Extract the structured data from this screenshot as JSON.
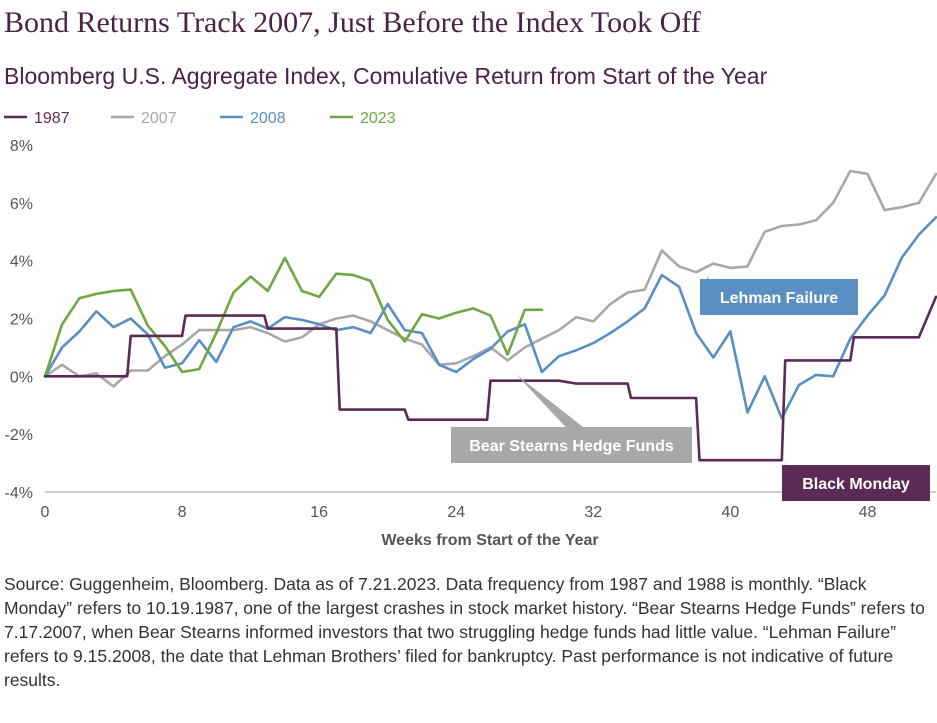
{
  "chart_data": {
    "type": "line",
    "title": "Bond Returns Track 2007, Just Before the Index Took Off",
    "subtitle": "Bloomberg U.S. Aggregate Index, Comulative Return from Start of the Year",
    "xlabel": "Weeks from Start of the Year",
    "ylabel": "",
    "xlim": [
      0,
      52
    ],
    "ylim": [
      -4,
      8
    ],
    "x_ticks": [
      "0",
      "8",
      "16",
      "24",
      "32",
      "40",
      "48"
    ],
    "y_ticks": [
      "8%",
      "6%",
      "4%",
      "2%",
      "0%",
      "-2%",
      "-4%"
    ],
    "grid": false,
    "legend_position": "top-left",
    "series": [
      {
        "name": "1987",
        "color": "#5b2b56",
        "x": [
          0,
          1,
          2,
          3,
          4,
          4.8,
          5,
          6,
          7,
          8,
          8.2,
          9,
          10,
          11,
          12,
          12.8,
          13,
          14,
          15,
          16,
          16.2,
          17,
          17.2,
          18,
          19,
          20,
          21,
          21.2,
          22,
          23,
          24,
          25,
          25.8,
          26,
          27,
          28,
          29,
          30,
          31,
          32,
          33,
          34,
          34.2,
          35,
          36,
          37,
          38,
          38.2,
          39,
          40,
          41,
          42,
          43,
          43.2,
          44,
          45,
          46,
          47,
          47.2,
          48,
          49,
          50,
          51,
          52
        ],
        "y": [
          0,
          0,
          0,
          0,
          0,
          0,
          1.4,
          1.4,
          1.4,
          1.4,
          2.1,
          2.1,
          2.1,
          2.1,
          2.1,
          2.1,
          1.65,
          1.65,
          1.65,
          1.65,
          1.65,
          1.65,
          -1.15,
          -1.15,
          -1.15,
          -1.15,
          -1.15,
          -1.5,
          -1.5,
          -1.5,
          -1.5,
          -1.5,
          -1.5,
          -0.15,
          -0.15,
          -0.15,
          -0.15,
          -0.15,
          -0.25,
          -0.25,
          -0.25,
          -0.25,
          -0.75,
          -0.75,
          -0.75,
          -0.75,
          -0.75,
          -2.9,
          -2.9,
          -2.9,
          -2.9,
          -2.9,
          -2.9,
          0.55,
          0.55,
          0.55,
          0.55,
          0.55,
          1.35,
          1.35,
          1.35,
          1.35,
          1.35,
          2.75
        ]
      },
      {
        "name": "2007",
        "color": "#a8a8a8",
        "x": [
          0,
          1,
          2,
          3,
          4,
          5,
          6,
          7,
          8,
          9,
          10,
          11,
          12,
          13,
          14,
          15,
          16,
          17,
          18,
          19,
          20,
          21,
          22,
          23,
          24,
          25,
          26,
          27,
          28,
          29,
          30,
          31,
          32,
          33,
          34,
          35,
          36,
          37,
          38,
          39,
          40,
          41,
          42,
          43,
          44,
          45,
          46,
          47,
          48,
          49,
          50,
          51,
          52
        ],
        "y": [
          0,
          0.4,
          0,
          0.1,
          -0.35,
          0.2,
          0.2,
          0.7,
          1.1,
          1.6,
          1.6,
          1.6,
          1.7,
          1.5,
          1.2,
          1.35,
          1.8,
          2.0,
          2.1,
          1.9,
          1.6,
          1.3,
          1.1,
          0.4,
          0.45,
          0.7,
          1.0,
          0.55,
          1.0,
          1.3,
          1.6,
          2.05,
          1.9,
          2.5,
          2.9,
          3.0,
          4.35,
          3.8,
          3.6,
          3.9,
          3.75,
          3.8,
          5.0,
          5.2,
          5.25,
          5.4,
          6.0,
          7.1,
          7.0,
          5.75,
          5.85,
          6.0,
          7.0
        ]
      },
      {
        "name": "2008",
        "color": "#5a8fc3",
        "x": [
          0,
          1,
          2,
          3,
          4,
          5,
          6,
          7,
          8,
          9,
          10,
          11,
          12,
          13,
          14,
          15,
          16,
          17,
          18,
          19,
          20,
          21,
          22,
          23,
          24,
          25,
          26,
          27,
          28,
          29,
          30,
          31,
          32,
          33,
          34,
          35,
          36,
          37,
          38,
          39,
          40,
          41,
          42,
          43,
          44,
          45,
          46,
          47,
          48,
          49,
          50,
          51,
          52
        ],
        "y": [
          0,
          1.0,
          1.55,
          2.25,
          1.7,
          2.0,
          1.45,
          0.3,
          0.45,
          1.25,
          0.5,
          1.7,
          1.9,
          1.65,
          2.05,
          1.95,
          1.8,
          1.6,
          1.7,
          1.5,
          2.5,
          1.6,
          1.5,
          0.4,
          0.15,
          0.6,
          0.95,
          1.55,
          1.8,
          0.15,
          0.7,
          0.9,
          1.15,
          1.5,
          1.9,
          2.35,
          3.5,
          3.1,
          1.5,
          0.65,
          1.55,
          -1.25,
          0,
          -1.45,
          -0.3,
          0.05,
          0,
          1.3,
          2.1,
          2.8,
          4.1,
          4.9,
          5.5
        ]
      },
      {
        "name": "2023",
        "color": "#6ea744",
        "x": [
          0,
          1,
          2,
          3,
          4,
          5,
          6,
          7,
          8,
          9,
          10,
          11,
          12,
          13,
          14,
          15,
          16,
          17,
          18,
          19,
          20,
          21,
          22,
          23,
          24,
          25,
          26,
          27,
          28,
          29
        ],
        "y": [
          0,
          1.8,
          2.7,
          2.85,
          2.95,
          3.0,
          1.75,
          1.05,
          0.15,
          0.25,
          1.5,
          2.9,
          3.45,
          2.95,
          4.1,
          2.95,
          2.75,
          3.55,
          3.5,
          3.3,
          1.95,
          1.2,
          2.15,
          2.0,
          2.2,
          2.35,
          2.1,
          0.75,
          2.3,
          2.3
        ]
      }
    ],
    "annotations": [
      {
        "id": "lehman",
        "text": "Lehman Failure",
        "x": 38.5,
        "y": 3.5,
        "color": "#5a8fc3"
      },
      {
        "id": "bear",
        "text": "Bear Stearns Hedge Funds",
        "x": 27.5,
        "y": 0.2,
        "color": "#a8a8a8"
      },
      {
        "id": "black",
        "text": "Black Monday",
        "x": 43,
        "y": -2.9,
        "color": "#5b2b56"
      }
    ]
  },
  "source_text": "Source: Guggenheim, Bloomberg. Data as of 7.21.2023. Data frequency from 1987 and 1988 is monthly. “Black Monday” refers to 10.19.1987, one of the largest crashes in stock market history. “Bear Stearns Hedge Funds” refers to 7.17.2007, when Bear Stearns informed investors that two struggling hedge funds had little value. “Lehman Failure” refers to 9.15.2008, the date that Lehman Brothers’ filed for bankruptcy. Past performance is not indicative of future results."
}
